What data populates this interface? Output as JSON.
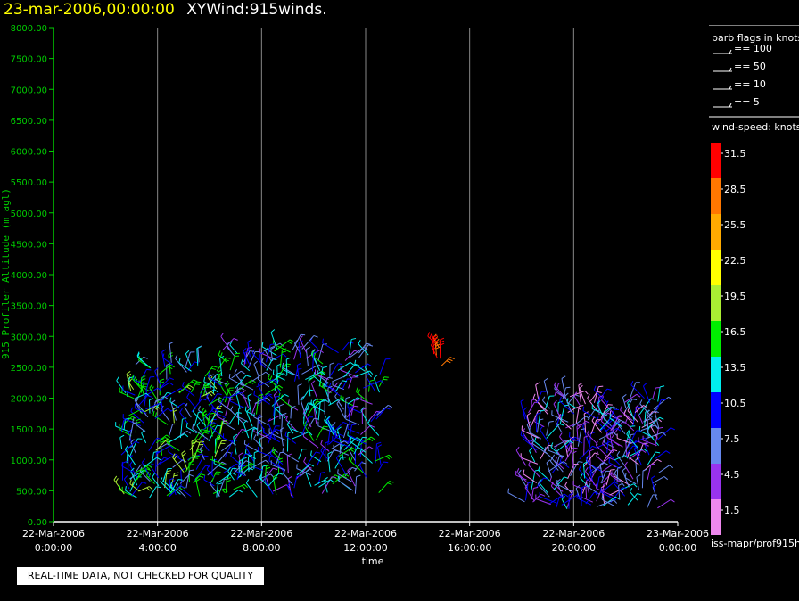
{
  "header": {
    "datetime": "23-mar-2006,00:00:00",
    "product": "XYWind:915winds."
  },
  "footer": {
    "quality_note": "REAL-TIME DATA, NOT CHECKED FOR QUALITY",
    "source": "iss-mapr/prof915h"
  },
  "colors": {
    "background": "#000000",
    "y_axis": "#00cc00",
    "x_axis": "#ffffff",
    "grid": "#888888",
    "title_date": "#ffff00"
  },
  "barb_legend": {
    "title": "barb flags in knots",
    "items": [
      {
        "label": "== 100"
      },
      {
        "label": "== 50"
      },
      {
        "label": "== 10"
      },
      {
        "label": "== 5"
      }
    ]
  },
  "speed_legend": {
    "title": "wind-speed: knots",
    "bins": [
      {
        "label": "31.5",
        "color": "#ff0000"
      },
      {
        "label": "28.5",
        "color": "#ff7700"
      },
      {
        "label": "25.5",
        "color": "#ffaa00"
      },
      {
        "label": "22.5",
        "color": "#ffff00"
      },
      {
        "label": "19.5",
        "color": "#aaee33"
      },
      {
        "label": "16.5",
        "color": "#00ee00"
      },
      {
        "label": "13.5",
        "color": "#00eeee"
      },
      {
        "label": "10.5",
        "color": "#0000ff"
      },
      {
        "label": "7.5",
        "color": "#6688ee"
      },
      {
        "label": "4.5",
        "color": "#9933ee"
      },
      {
        "label": "1.5",
        "color": "#ee88ee"
      }
    ]
  },
  "chart_data": {
    "type": "scatter",
    "title": "XYWind:915winds.",
    "xlabel": "time",
    "ylabel": "915 Profiler Altitude (m agl)",
    "ylim": [
      0,
      8000
    ],
    "xlim": [
      0,
      24
    ],
    "grid": "vertical",
    "yticks": [
      "0.00",
      "500.00",
      "1000.00",
      "1500.00",
      "2000.00",
      "2500.00",
      "3000.00",
      "3500.00",
      "4000.00",
      "4500.00",
      "5000.00",
      "5500.00",
      "6000.00",
      "6500.00",
      "7000.00",
      "7500.00",
      "8000.00"
    ],
    "xticks": [
      {
        "date": "22-Mar-2006",
        "time": "0:00:00"
      },
      {
        "date": "22-Mar-2006",
        "time": "4:00:00"
      },
      {
        "date": "22-Mar-2006",
        "time": "8:00:00"
      },
      {
        "date": "22-Mar-2006",
        "time": "12:00:00"
      },
      {
        "date": "22-Mar-2006",
        "time": "16:00:00"
      },
      {
        "date": "22-Mar-2006",
        "time": "20:00:00"
      },
      {
        "date": "23-Mar-2006",
        "time": "0:00:00"
      }
    ],
    "segments": [
      {
        "t_start": 2.6,
        "t_end": 6.4,
        "alt_min": 380,
        "alt_max": 2600,
        "dominant_speed_knots": 13.5
      },
      {
        "t_start": 6.4,
        "t_end": 12.6,
        "alt_min": 380,
        "alt_max": 2800,
        "dominant_speed_knots": 10.5
      },
      {
        "t_start": 14.6,
        "t_end": 15.1,
        "alt_min": 2500,
        "alt_max": 2870,
        "dominant_speed_knots": 31.5
      },
      {
        "t_start": 18.1,
        "t_end": 23.3,
        "alt_min": 200,
        "alt_max": 2050,
        "dominant_speed_knots": 7.5
      }
    ]
  }
}
